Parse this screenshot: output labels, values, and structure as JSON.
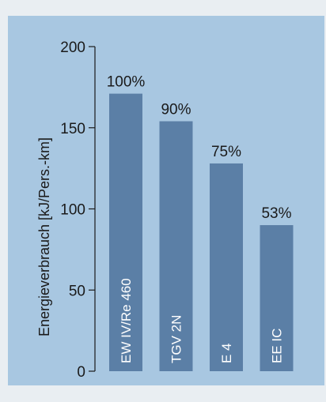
{
  "chart_data": {
    "type": "bar",
    "categories": [
      "EW IV/Re 460",
      "TGV 2N",
      "E 4",
      "EE IC"
    ],
    "values": [
      171,
      154,
      128,
      90
    ],
    "data_labels": [
      "100%",
      "90%",
      "75%",
      "53%"
    ],
    "title": "",
    "xlabel": "",
    "ylabel": "Energieverbrauch [kJ/Pers.-km]",
    "ylim": [
      0,
      200
    ],
    "yticks": [
      0,
      50,
      100,
      150,
      200
    ],
    "grid": false,
    "legend": "none"
  },
  "colors": {
    "panel_background": "#a8c7e1",
    "bar": "#5b7fa6",
    "axis": "#1a1a1a"
  }
}
